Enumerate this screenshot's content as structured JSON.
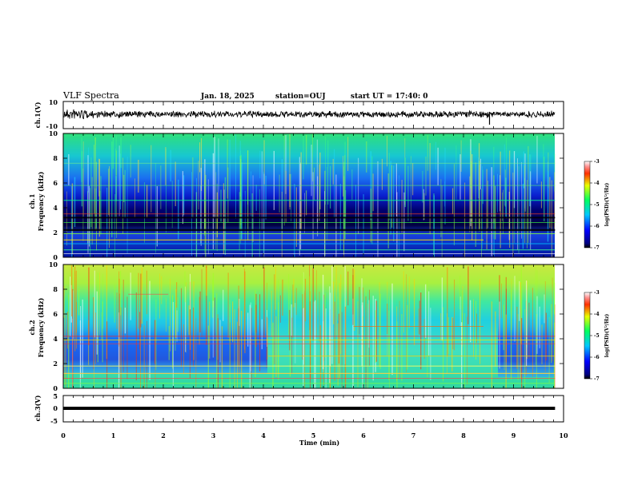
{
  "header": {
    "title": "VLF Spectra",
    "date": "Jan. 18, 2025",
    "station": "station=OUJ",
    "start": "start UT =  17:40: 0"
  },
  "chart_data": [
    {
      "type": "line",
      "name": "waveform-ch1",
      "ylabel": "ch.1(V)",
      "ylim": [
        -10,
        10
      ],
      "yticks": [
        "10",
        "-10"
      ],
      "x_end_min": 9.83,
      "description_values": {
        "baseline_v": 0
      }
    },
    {
      "type": "heatmap",
      "name": "spectrogram-ch1",
      "ylabel": [
        "ch.1",
        "Frequency (kHz)"
      ],
      "ylim": [
        0,
        10
      ],
      "yticks": [
        "0",
        "2",
        "4",
        "6",
        "8",
        "10"
      ],
      "colorbar": {
        "label": "log(PSD)(V²/Hz)",
        "ticks": [
          "-3",
          "-4",
          "-5",
          "-6",
          "-7"
        ],
        "range": [
          -7,
          -3
        ]
      }
    },
    {
      "type": "heatmap",
      "name": "spectrogram-ch2",
      "ylabel": [
        "ch.2",
        "Frequency (kHz)"
      ],
      "ylim": [
        0,
        10
      ],
      "yticks": [
        "0",
        "2",
        "4",
        "6",
        "8",
        "10"
      ],
      "colorbar": {
        "label": "log(PSD)(V²/Hz)",
        "ticks": [
          "-3",
          "-4",
          "-5",
          "-6",
          "-7"
        ],
        "range": [
          -7,
          -3
        ]
      }
    },
    {
      "type": "line",
      "name": "waveform-ch3",
      "ylabel": "ch.3(V)",
      "ylim": [
        -5,
        5
      ],
      "yticks": [
        "5",
        "0",
        "-5"
      ],
      "series": [
        {
          "values": [
            -1.2,
            -1.2
          ]
        }
      ],
      "x_end_min": 9.83
    }
  ],
  "xaxis": {
    "label": "Time (min)",
    "range": [
      0,
      10
    ],
    "ticks": [
      "0",
      "1",
      "2",
      "3",
      "4",
      "5",
      "6",
      "7",
      "8",
      "9",
      "10"
    ]
  },
  "colors": {
    "frame": "#000000",
    "background": "#ffffff"
  }
}
